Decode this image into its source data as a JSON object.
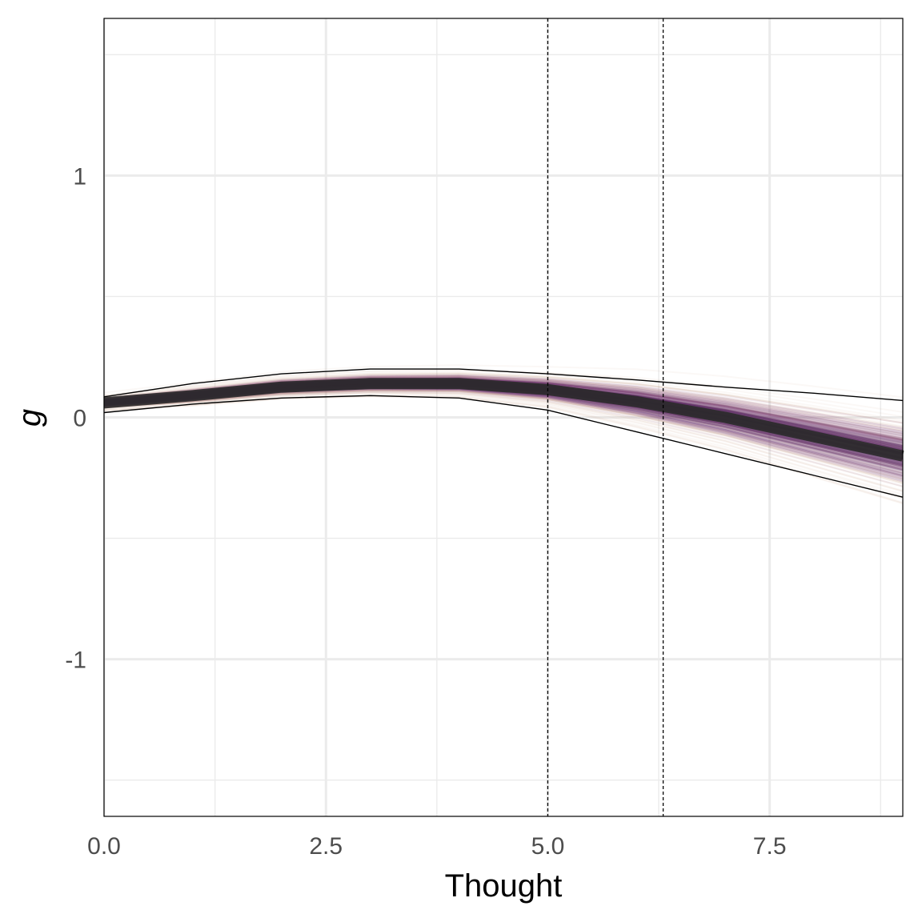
{
  "chart_data": {
    "type": "line",
    "title": "",
    "xlabel": "Thought",
    "ylabel": "g",
    "xlim": [
      0,
      9
    ],
    "ylim": [
      -1.65,
      1.65
    ],
    "x_ticks": [
      0.0,
      2.5,
      5.0,
      7.5
    ],
    "x_tick_labels": [
      "0.0",
      "2.5",
      "5.0",
      "7.5"
    ],
    "x_minor_ticks": [
      1.25,
      3.75,
      6.25,
      8.75
    ],
    "y_ticks": [
      -1,
      0,
      1
    ],
    "y_tick_labels": [
      "-1",
      "0",
      "1"
    ],
    "y_minor_ticks": [
      -1.5,
      -0.5,
      0.5,
      1.5
    ],
    "grid": true,
    "legend": "none",
    "vertical_reference_lines": [
      5.0,
      6.3
    ],
    "x": [
      0,
      1,
      2,
      3,
      4,
      5,
      6,
      7,
      8,
      9
    ],
    "series": [
      {
        "role": "median",
        "values": [
          0.06,
          0.09,
          0.125,
          0.14,
          0.14,
          0.115,
          0.065,
          0.0,
          -0.08,
          -0.16
        ]
      },
      {
        "role": "upper-band",
        "values": [
          0.085,
          0.14,
          0.18,
          0.2,
          0.2,
          0.18,
          0.155,
          0.125,
          0.1,
          0.07
        ]
      },
      {
        "role": "lower-band",
        "values": [
          0.02,
          0.055,
          0.08,
          0.09,
          0.08,
          0.03,
          -0.06,
          -0.15,
          -0.24,
          -0.33
        ]
      }
    ],
    "colors": {
      "median": "#2a2a2a",
      "inner_draws": "#5b2a5e",
      "mid_draws": "#7a3a7a",
      "outer_draws": "#c0846a",
      "band_lines": "#000000",
      "grid": "#ebebeb",
      "panel_border": "#000000",
      "ref_lines": "#000000"
    }
  }
}
